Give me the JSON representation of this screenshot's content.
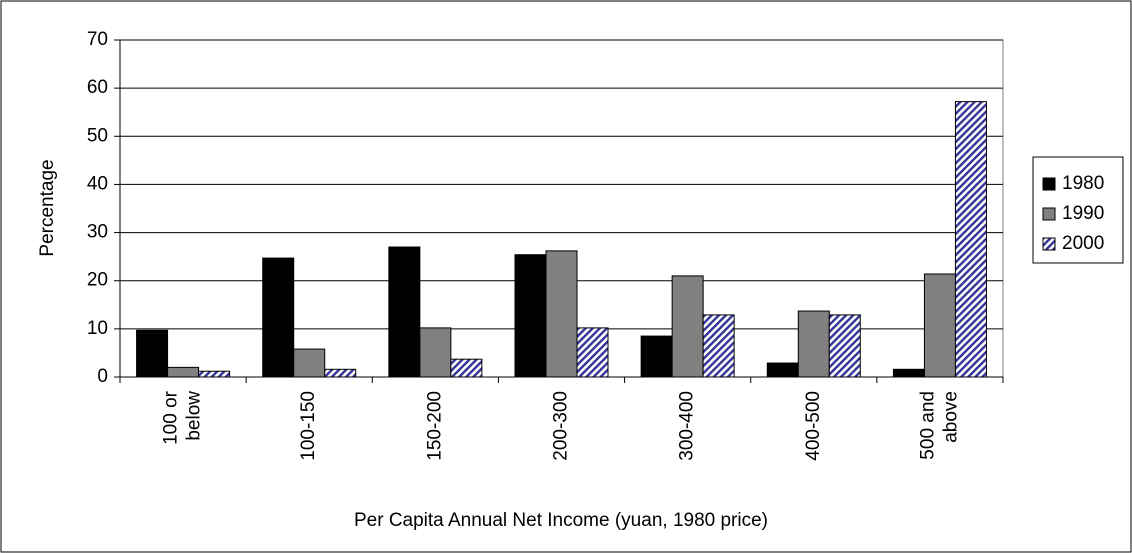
{
  "chart_data": {
    "type": "bar",
    "x_label": "Per Capita Annual Net Income (yuan, 1980 price)",
    "y_label": "Percentage",
    "categories": [
      "100 or below",
      "100-150",
      "150-200",
      "200-300",
      "300-400",
      "400-500",
      "500 and above"
    ],
    "series": [
      {
        "name": "1980",
        "color": "#000000",
        "values": [
          9.7,
          24.7,
          27,
          25.4,
          8.5,
          2.9,
          1.6
        ]
      },
      {
        "name": "1990",
        "color": "#808080",
        "values": [
          2,
          5.8,
          10.2,
          26.2,
          21,
          13.7,
          21.4
        ]
      },
      {
        "name": "2000",
        "color": "#333399",
        "hatch": true,
        "values": [
          1.2,
          1.6,
          3.7,
          10.2,
          12.9,
          12.9,
          57.2
        ]
      }
    ],
    "ylim": [
      0,
      70
    ],
    "yticks": [
      0,
      10,
      20,
      30,
      40,
      50,
      60,
      70
    ],
    "grid": true,
    "legend": "right"
  }
}
